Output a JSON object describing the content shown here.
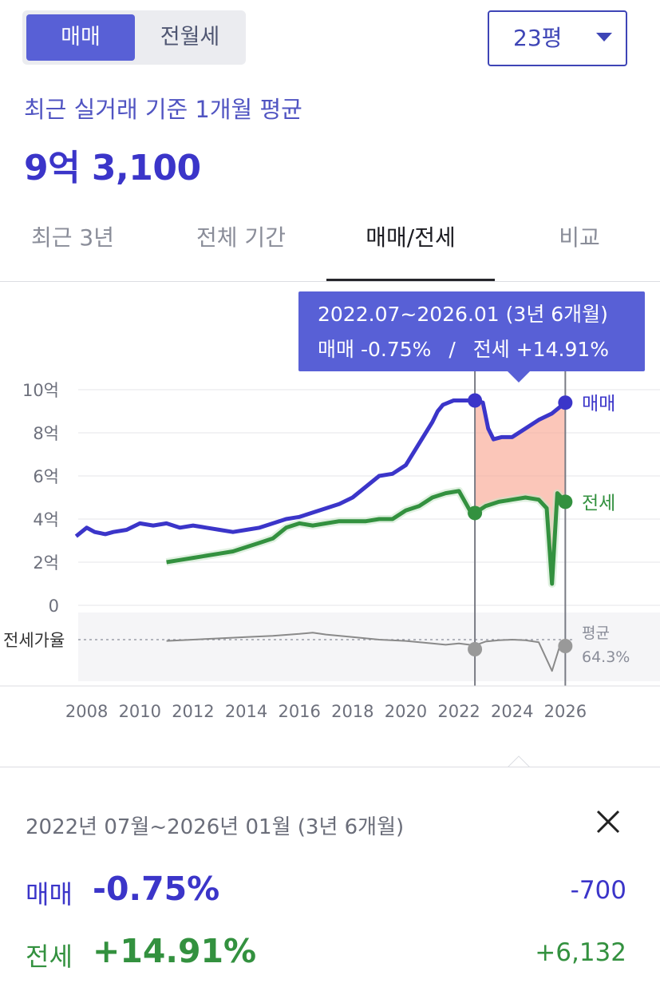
{
  "toggle": {
    "options": [
      "매매",
      "전월세"
    ],
    "selected": "매매"
  },
  "size_select": {
    "value": "23평"
  },
  "summary": {
    "label": "최근 실거래 기준 1개월 평균",
    "price": "9억 3,100"
  },
  "tabs": [
    {
      "label": "최근 3년",
      "active": false
    },
    {
      "label": "전체 기간",
      "active": false
    },
    {
      "label": "매매/전세",
      "active": true
    },
    {
      "label": "비교",
      "active": false
    }
  ],
  "tooltip": {
    "range": "2022.07~2026.01 (3년 6개월)",
    "sale_label": "매매",
    "sale_change": "-0.75%",
    "separator": "/",
    "jeonse_label": "전세",
    "jeonse_change": "+14.91%"
  },
  "chart_data": {
    "type": "line",
    "x_ticks": [
      "2008",
      "2010",
      "2012",
      "2014",
      "2016",
      "2018",
      "2020",
      "2022",
      "2024",
      "2026"
    ],
    "y_ticks": [
      "10억",
      "8억",
      "6억",
      "4억",
      "2억",
      "0"
    ],
    "ylim": [
      0,
      10
    ],
    "xlim": [
      2007.5,
      2026.8
    ],
    "series": [
      {
        "name": "매매",
        "color": "#3b35c9",
        "x": [
          2007.6,
          2008.0,
          2008.3,
          2008.7,
          2009.0,
          2009.5,
          2010.0,
          2010.5,
          2011.0,
          2011.5,
          2012.0,
          2012.5,
          2013.0,
          2013.5,
          2014.0,
          2014.5,
          2015.0,
          2015.5,
          2016.0,
          2016.5,
          2017.0,
          2017.5,
          2018.0,
          2018.5,
          2019.0,
          2019.5,
          2020.0,
          2020.5,
          2021.0,
          2021.2,
          2021.4,
          2021.6,
          2021.8,
          2022.0,
          2022.3,
          2022.6,
          2022.9,
          2023.1,
          2023.3,
          2023.6,
          2024.0,
          2024.5,
          2025.0,
          2025.5,
          2025.8,
          2026.0
        ],
        "values": [
          3.2,
          3.6,
          3.4,
          3.3,
          3.4,
          3.5,
          3.8,
          3.7,
          3.8,
          3.6,
          3.7,
          3.6,
          3.5,
          3.4,
          3.5,
          3.6,
          3.8,
          4.0,
          4.1,
          4.3,
          4.5,
          4.7,
          5.0,
          5.5,
          6.0,
          6.1,
          6.5,
          7.5,
          8.5,
          9.0,
          9.3,
          9.4,
          9.5,
          9.5,
          9.5,
          9.5,
          9.4,
          8.2,
          7.7,
          7.8,
          7.8,
          8.2,
          8.6,
          8.9,
          9.2,
          9.4
        ]
      },
      {
        "name": "전세",
        "color": "#33913f",
        "x": [
          2011.0,
          2011.5,
          2012.0,
          2012.5,
          2013.0,
          2013.5,
          2014.0,
          2014.5,
          2015.0,
          2015.5,
          2016.0,
          2016.5,
          2017.0,
          2017.5,
          2018.0,
          2018.5,
          2019.0,
          2019.5,
          2020.0,
          2020.5,
          2021.0,
          2021.5,
          2022.0,
          2022.5,
          2023.0,
          2023.5,
          2024.0,
          2024.5,
          2025.0,
          2025.3,
          2025.5,
          2025.7,
          2026.0
        ],
        "values": [
          2.0,
          2.1,
          2.2,
          2.3,
          2.4,
          2.5,
          2.7,
          2.9,
          3.1,
          3.6,
          3.8,
          3.7,
          3.8,
          3.9,
          3.9,
          3.9,
          4.0,
          4.0,
          4.4,
          4.6,
          5.0,
          5.2,
          5.3,
          4.2,
          4.6,
          4.8,
          4.9,
          5.0,
          4.9,
          4.5,
          1.0,
          5.2,
          4.8
        ]
      }
    ],
    "ratio_series": {
      "name": "전세가율",
      "average_label": "평균",
      "average_value": "64.3%",
      "x": [
        2011.0,
        2012.0,
        2013.0,
        2014.0,
        2015.0,
        2016.0,
        2016.5,
        2017.0,
        2018.0,
        2019.0,
        2020.0,
        2021.0,
        2021.5,
        2022.0,
        2022.6,
        2023.0,
        2023.5,
        2024.0,
        2024.5,
        2025.0,
        2025.5,
        2025.8,
        2026.0
      ],
      "values": [
        62,
        64,
        66,
        68,
        70,
        73,
        75,
        72,
        68,
        64,
        62,
        58,
        56,
        58,
        55,
        61,
        63,
        64,
        63,
        60,
        15,
        55,
        52
      ]
    },
    "highlight_range": [
      2022.6,
      2026.0
    ]
  },
  "detail": {
    "range": "2022년 07월~2026년 01월 (3년 6개월)",
    "sale": {
      "label": "매매",
      "change": "-0.75%",
      "amount": "-700"
    },
    "jeonse": {
      "label": "전세",
      "change": "+14.91%",
      "amount": "+6,132"
    }
  }
}
